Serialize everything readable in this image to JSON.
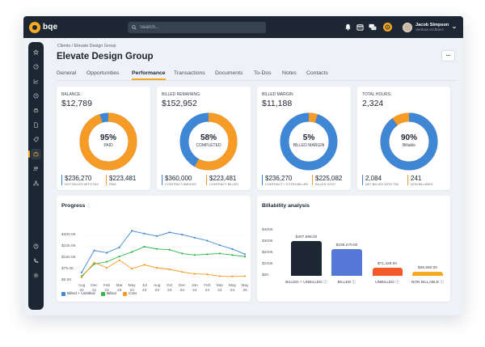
{
  "app": {
    "brand": "bqe"
  },
  "topbar": {
    "search_placeholder": "Search...",
    "user_name": "Jacob Simpson",
    "user_role": "Ventura Architect"
  },
  "breadcrumb": "Clients / Elevate Design Group",
  "page_title": "Elevate Design Group",
  "tabs": [
    "General",
    "Opportunities",
    "Performance",
    "Transactions",
    "Documents",
    "To-Dos",
    "Notes",
    "Contacts"
  ],
  "active_tab": "Performance",
  "kpis": [
    {
      "label": "Balance:",
      "value": "$12,789",
      "pct": "95%",
      "pct_label": "PAID",
      "fraction": 0.95,
      "left_value": "$236,270",
      "left_label": "Not billed with tax",
      "right_value": "$223,481",
      "right_label": "Paid",
      "main_color": "#f59b26",
      "rest_color": "#3f86d4"
    },
    {
      "label": "Billed Remaining:",
      "value": "$152,952",
      "pct": "58%",
      "pct_label": "COMPLETED",
      "fraction": 0.58,
      "left_value": "$360,000",
      "left_label": "Contract amount",
      "right_value": "$223,481",
      "right_label": "Contract billed",
      "main_color": "#f59b26",
      "rest_color": "#3f86d4"
    },
    {
      "label": "Billed Margin",
      "value": "$11,188",
      "pct": "5%",
      "pct_label": "BILLED MARGIN",
      "fraction": 0.05,
      "left_value": "$236,270",
      "left_label": "Contract + Extra billed",
      "right_value": "$225,082",
      "right_label": "Billed cost",
      "main_color": "#f59b26",
      "rest_color": "#3f86d4"
    },
    {
      "label": "Total Hours:",
      "value": "2,324",
      "pct": "90%",
      "pct_label": "Billable",
      "fraction": 0.9,
      "left_value": "2,084",
      "left_label": "Net billed with tax",
      "right_value": "241",
      "right_label": "Non billable",
      "main_color": "#3f86d4",
      "rest_color": "#f59b26"
    }
  ],
  "progress_chart": {
    "chart_data": {
      "type": "line",
      "title": "Progress",
      "categories": [
        "Aug 22",
        "Dec 22",
        "Feb 23",
        "Mar 23",
        "May 23",
        "Jul 23",
        "Aug 23",
        "Oct 23",
        "Dec 23",
        "Jan 24",
        "Feb 24",
        "Mar 24",
        "May 24",
        "May 25"
      ],
      "yticks": [
        "$300.0K",
        "$225.0K",
        "$150.0K",
        "$75.0K",
        "$0.0K"
      ],
      "ylim": [
        0,
        300000
      ],
      "series": [
        {
          "name": "Billed + Unbilled",
          "color": "#3f86d4",
          "values": [
            55000,
            200000,
            185000,
            220000,
            330000,
            312000,
            295000,
            320000,
            305000,
            285000,
            265000,
            235000,
            210000,
            175000
          ]
        },
        {
          "name": "Billed",
          "color": "#2fb54a",
          "values": [
            30000,
            110000,
            125000,
            160000,
            190000,
            225000,
            210000,
            205000,
            180000,
            170000,
            175000,
            180000,
            170000,
            160000
          ]
        },
        {
          "name": "Cost",
          "color": "#f59b26",
          "values": [
            22000,
            120000,
            85000,
            135000,
            80000,
            105000,
            85000,
            75000,
            58000,
            45000,
            42000,
            30000,
            28000,
            30000
          ]
        }
      ]
    }
  },
  "billability_chart": {
    "chart_data": {
      "type": "bar",
      "title": "Billability analysis",
      "categories": [
        "BILLED + UNBILLED",
        "BILLED",
        "UNBILLED",
        "NON BILLABLE"
      ],
      "values": [
        307698,
        236270,
        71428,
        36550
      ],
      "value_labels": [
        "$307,698.00",
        "$236,270.00",
        "$71,428.00",
        "$36,550.00"
      ],
      "colors": [
        "#1c2733",
        "#5577d8",
        "#f4582a",
        "#f7a823"
      ],
      "yticks": [
        "$400K",
        "$300K",
        "$200K",
        "$100K",
        "$0K"
      ],
      "ylim": [
        0,
        400000
      ]
    }
  }
}
